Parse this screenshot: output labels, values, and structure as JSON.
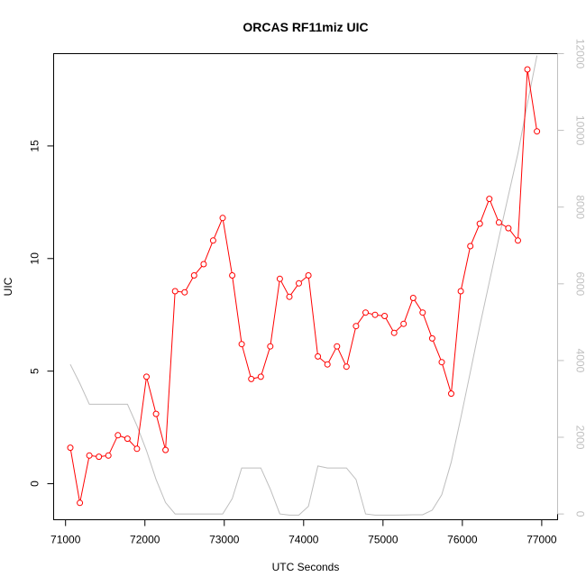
{
  "chart_data": {
    "type": "line",
    "title": "ORCAS RF11miz UIC",
    "xlabel": "UTC Seconds",
    "ylabel": "UIC",
    "xlim": [
      70850,
      77200
    ],
    "ylim": [
      -1.6,
      19.1
    ],
    "ylim_right": [
      -150,
      12000
    ],
    "grid": false,
    "legend": "none",
    "x_ticks": [
      71000,
      72000,
      73000,
      74000,
      75000,
      76000,
      77000
    ],
    "y_ticks": [
      0,
      5,
      10,
      15
    ],
    "y_right_ticks": [
      0,
      2000,
      4000,
      6000,
      8000,
      10000,
      12000
    ],
    "colors": {
      "uic": "#ff0000",
      "altitude": "#bebebe",
      "axis": "#000000",
      "right_axis": "#bfbfbf"
    },
    "series": [
      {
        "axis": "left",
        "style": "line+open-circles",
        "x": [
          71060,
          71180,
          71300,
          71420,
          71540,
          71660,
          71780,
          71900,
          72020,
          72140,
          72260,
          72380,
          72500,
          72620,
          72740,
          72860,
          72980,
          73100,
          73220,
          73340,
          73460,
          73580,
          73700,
          73820,
          73940,
          74060,
          74180,
          74300,
          74420,
          74540,
          74660,
          74780,
          74900,
          75020,
          75140,
          75260,
          75380,
          75500,
          75620,
          75740,
          75860,
          75980,
          76100,
          76220,
          76340,
          76460,
          76580,
          76700,
          76820,
          76940
        ],
        "y": [
          1.6,
          -0.85,
          1.25,
          1.2,
          1.25,
          2.15,
          2.0,
          1.55,
          4.75,
          3.1,
          1.5,
          8.55,
          8.5,
          9.25,
          9.75,
          10.8,
          11.8,
          9.25,
          6.2,
          4.65,
          4.75,
          6.1,
          9.1,
          8.3,
          8.9,
          9.25,
          5.65,
          5.3,
          6.1,
          5.2,
          7.0,
          7.6,
          7.5,
          7.45,
          6.7,
          7.1,
          8.25,
          7.6,
          6.45,
          5.4,
          4.0,
          8.55,
          10.55,
          11.55,
          12.65,
          11.6,
          11.35,
          10.8,
          18.4,
          15.65
        ]
      },
      {
        "axis": "right",
        "style": "line",
        "x": [
          71060,
          71180,
          71300,
          71420,
          71540,
          71660,
          71780,
          71900,
          72020,
          72140,
          72260,
          72380,
          72500,
          72620,
          72740,
          72860,
          72980,
          73100,
          73220,
          73340,
          73460,
          73580,
          73700,
          73820,
          73940,
          74060,
          74180,
          74300,
          74420,
          74540,
          74660,
          74780,
          74900,
          75020,
          75140,
          75260,
          75380,
          75500,
          75620,
          75740,
          75860,
          75980,
          76100,
          76220,
          76340,
          76460,
          76580,
          76700,
          76820,
          76940
        ],
        "y": [
          3900,
          3400,
          2860,
          2860,
          2860,
          2860,
          2860,
          2300,
          1650,
          900,
          300,
          0,
          0,
          0,
          0,
          0,
          0,
          400,
          1200,
          1200,
          1200,
          650,
          0,
          -30,
          -30,
          200,
          1250,
          1200,
          1200,
          1200,
          900,
          0,
          -30,
          -30,
          -30,
          -25,
          -20,
          -20,
          100,
          500,
          1350,
          2500,
          3700,
          4900,
          6050,
          7200,
          8300,
          9400,
          10700,
          11950
        ]
      }
    ]
  }
}
